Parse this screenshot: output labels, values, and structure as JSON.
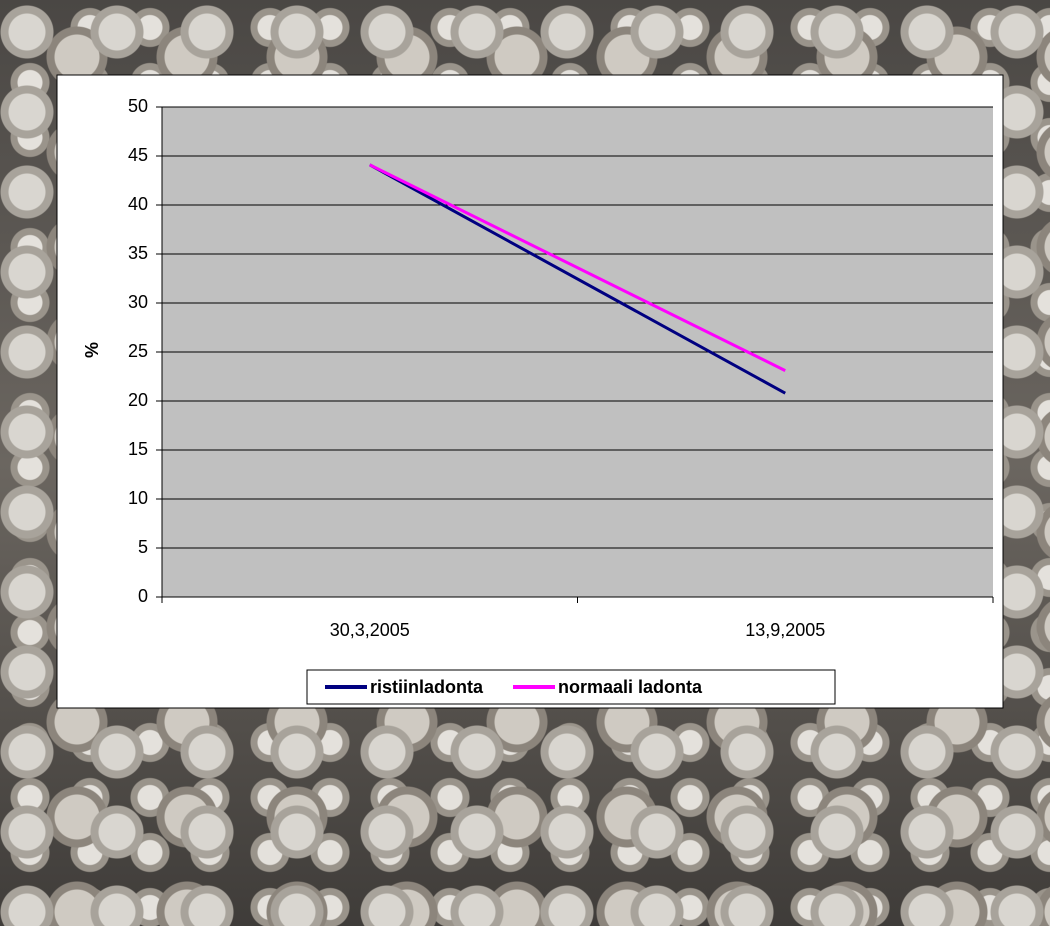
{
  "chart_data": {
    "type": "line",
    "y_label": "%",
    "categories": [
      "30,3,2005",
      "13,9,2005"
    ],
    "series": [
      {
        "name": "ristiinladonta",
        "color": "#000080",
        "values": [
          44.1,
          20.8
        ]
      },
      {
        "name": "normaali ladonta",
        "color": "#ff00ff",
        "values": [
          44.1,
          23.1
        ]
      }
    ],
    "ylim": [
      0,
      50
    ],
    "yticks": [
      0,
      5,
      10,
      15,
      20,
      25,
      30,
      35,
      40,
      45,
      50
    ],
    "grid": true,
    "legend": "bottom"
  }
}
